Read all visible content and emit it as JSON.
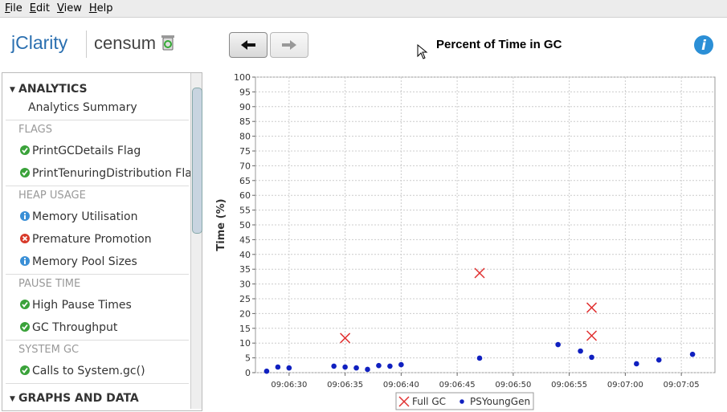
{
  "menu": [
    "File",
    "Edit",
    "View",
    "Help"
  ],
  "header": {
    "logo": "jClarity",
    "product": "censum"
  },
  "sidebar": {
    "groups": [
      {
        "title": "ANALYTICS",
        "items": [
          "Analytics Summary"
        ]
      },
      {
        "title": "FLAGS",
        "items": [
          "PrintGCDetails Flag",
          "PrintTenuringDistribution Flag"
        ]
      },
      {
        "title": "HEAP USAGE",
        "items": [
          "Memory Utilisation",
          "Premature Promotion",
          "Memory Pool Sizes"
        ]
      },
      {
        "title": "PAUSE TIME",
        "items": [
          "High Pause Times",
          "GC Throughput"
        ]
      },
      {
        "title": "SYSTEM GC",
        "items": [
          "Calls to System.gc()"
        ]
      }
    ],
    "footer": "GRAPHS AND DATA"
  },
  "chart_data": {
    "type": "scatter",
    "title": "Percent of Time in GC",
    "y_label": "Time (%)",
    "xlim": [
      "09:06:27",
      "09:07:08"
    ],
    "xticks": [
      "09:06:30",
      "09:06:35",
      "09:06:40",
      "09:06:45",
      "09:06:50",
      "09:06:55",
      "09:07:00",
      "09:07:05"
    ],
    "ylim": [
      0,
      100
    ],
    "yticks": [
      0,
      5,
      10,
      15,
      20,
      25,
      30,
      35,
      40,
      45,
      50,
      55,
      60,
      65,
      70,
      75,
      80,
      85,
      90,
      95,
      100
    ],
    "grid": true,
    "series": [
      {
        "name": "Full GC",
        "color": "#e03030",
        "marker": "x",
        "x": [
          "09:06:35",
          "09:06:47",
          "09:06:57",
          "09:06:57"
        ],
        "values": [
          11.7,
          33.7,
          22,
          12.5
        ]
      },
      {
        "name": "PSYoungGen",
        "color": "#1020c0",
        "marker": "dot",
        "x": [
          "09:06:28",
          "09:06:29",
          "09:06:30",
          "09:06:34",
          "09:06:35",
          "09:06:36",
          "09:06:37",
          "09:06:38",
          "09:06:39",
          "09:06:40",
          "09:06:47",
          "09:06:54",
          "09:06:56",
          "09:06:57",
          "09:07:01",
          "09:07:03",
          "09:07:06"
        ],
        "values": [
          0.5,
          1.9,
          1.6,
          2.2,
          1.9,
          1.6,
          1.1,
          2.4,
          2.2,
          2.7,
          4.9,
          9.5,
          7.3,
          5.2,
          3.0,
          4.3,
          6.2
        ]
      }
    ]
  }
}
